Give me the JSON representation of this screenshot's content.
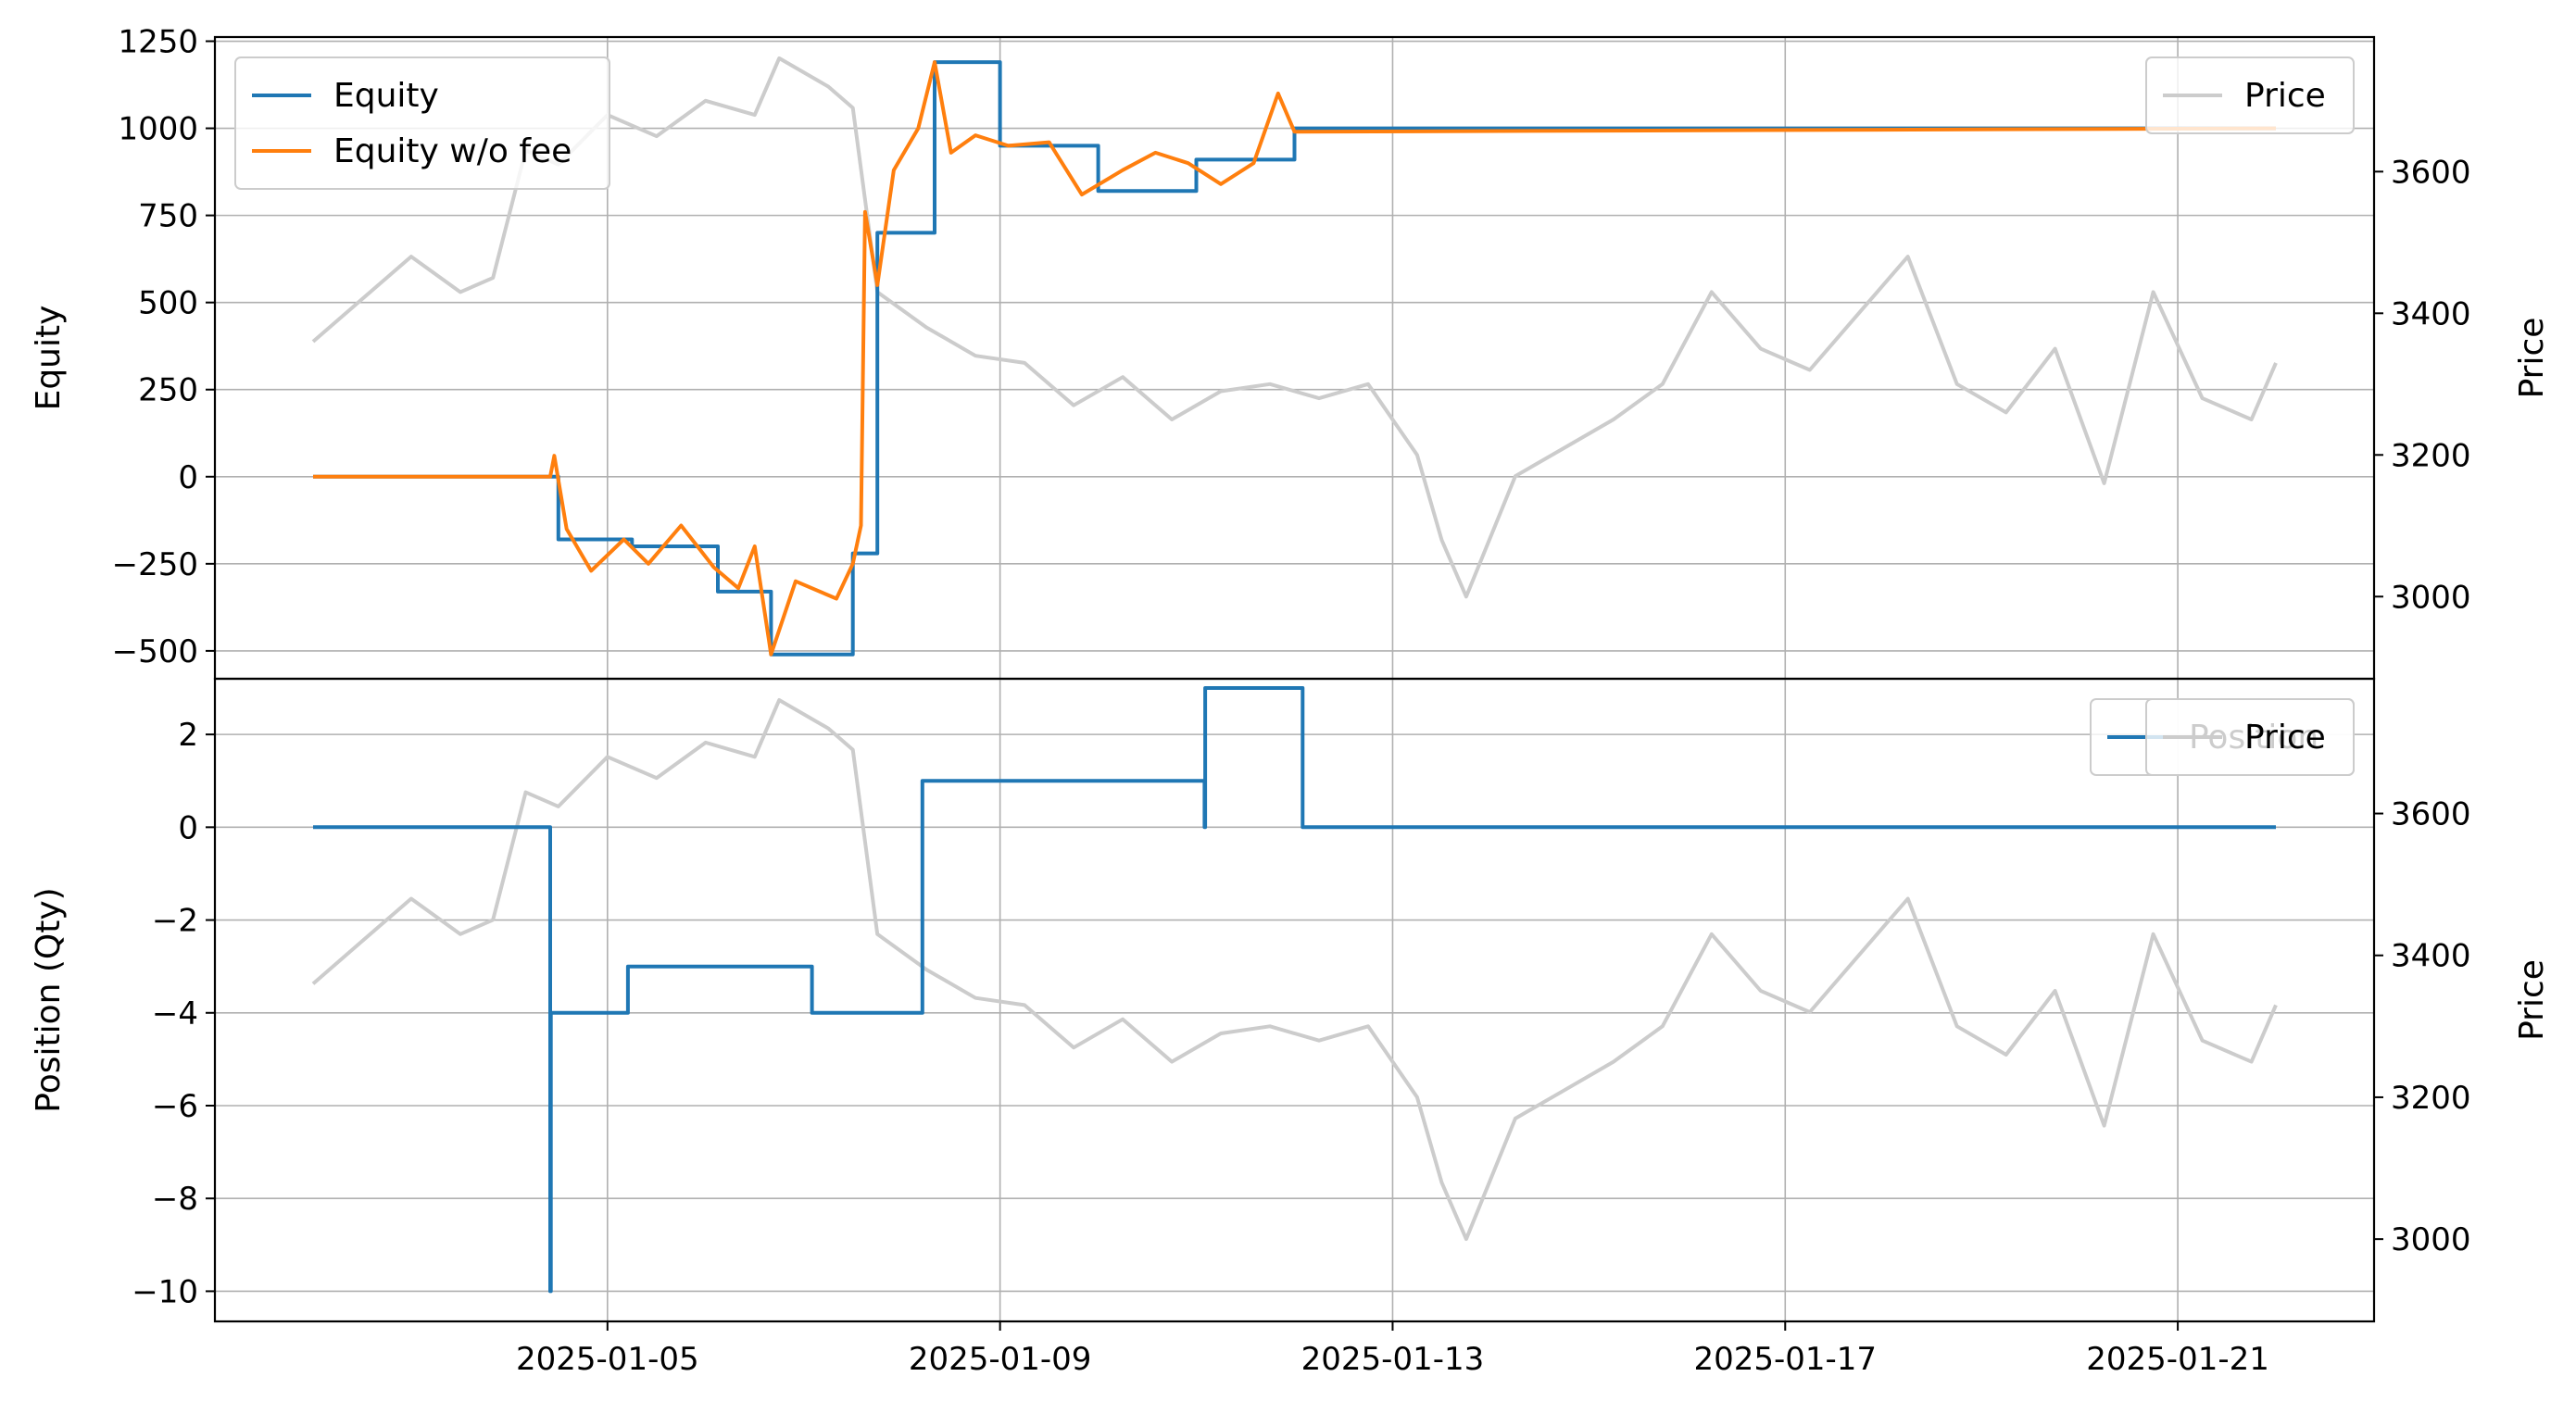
{
  "chart_data": [
    {
      "type": "line",
      "panel": "top",
      "ylabel": "Equity",
      "y2label": "Price",
      "ylim": [
        -580,
        1262
      ],
      "y2lim": [
        2884,
        3790
      ],
      "xlim": [
        "2025-01-01T00:00",
        "2025-01-23T00:00"
      ],
      "grid": true,
      "y_ticks": [
        -500,
        -250,
        0,
        250,
        500,
        750,
        1000,
        1250
      ],
      "y_tick_labels": [
        "−500",
        "−250",
        "0",
        "250",
        "500",
        "750",
        "1000",
        "1250"
      ],
      "y2_ticks": [
        3000,
        3200,
        3400,
        3600
      ],
      "y2_tick_labels": [
        "3000",
        "3200",
        "3400",
        "3600"
      ],
      "legend_left_position": "upper-left",
      "legend_right_position": "upper-right",
      "series": [
        {
          "name": "Equity",
          "color": "#1f77b4",
          "style": "step",
          "axis": "left",
          "points": [
            [
              "2025-01-02T00:00",
              0
            ],
            [
              "2025-01-04T10:00",
              0
            ],
            [
              "2025-01-04T12:00",
              -180
            ],
            [
              "2025-01-05T06:00",
              -200
            ],
            [
              "2025-01-06T03:00",
              -330
            ],
            [
              "2025-01-06T16:00",
              -510
            ],
            [
              "2025-01-07T12:00",
              -220
            ],
            [
              "2025-01-07T18:00",
              700
            ],
            [
              "2025-01-08T08:00",
              1190
            ],
            [
              "2025-01-09T00:00",
              950
            ],
            [
              "2025-01-10T00:00",
              820
            ],
            [
              "2025-01-11T00:00",
              910
            ],
            [
              "2025-01-12T00:00",
              1000
            ],
            [
              "2025-01-22T00:00",
              1000
            ]
          ]
        },
        {
          "name": "Equity w/o fee",
          "color": "#ff7f0e",
          "style": "line",
          "axis": "left",
          "points": [
            [
              "2025-01-02T00:00",
              0
            ],
            [
              "2025-01-04T10:00",
              0
            ],
            [
              "2025-01-04T11:00",
              60
            ],
            [
              "2025-01-04T14:00",
              -150
            ],
            [
              "2025-01-04T20:00",
              -270
            ],
            [
              "2025-01-05T04:00",
              -180
            ],
            [
              "2025-01-05T10:00",
              -250
            ],
            [
              "2025-01-05T18:00",
              -140
            ],
            [
              "2025-01-06T02:00",
              -260
            ],
            [
              "2025-01-06T08:00",
              -320
            ],
            [
              "2025-01-06T12:00",
              -200
            ],
            [
              "2025-01-06T16:00",
              -510
            ],
            [
              "2025-01-06T22:00",
              -300
            ],
            [
              "2025-01-07T08:00",
              -350
            ],
            [
              "2025-01-07T12:00",
              -250
            ],
            [
              "2025-01-07T14:00",
              -140
            ],
            [
              "2025-01-07T15:00",
              760
            ],
            [
              "2025-01-07T18:00",
              550
            ],
            [
              "2025-01-07T22:00",
              880
            ],
            [
              "2025-01-08T04:00",
              1000
            ],
            [
              "2025-01-08T08:00",
              1190
            ],
            [
              "2025-01-08T12:00",
              930
            ],
            [
              "2025-01-08T18:00",
              980
            ],
            [
              "2025-01-09T02:00",
              950
            ],
            [
              "2025-01-09T12:00",
              960
            ],
            [
              "2025-01-09T20:00",
              810
            ],
            [
              "2025-01-10T06:00",
              880
            ],
            [
              "2025-01-10T14:00",
              930
            ],
            [
              "2025-01-10T22:00",
              900
            ],
            [
              "2025-01-11T06:00",
              840
            ],
            [
              "2025-01-11T14:00",
              900
            ],
            [
              "2025-01-11T20:00",
              1100
            ],
            [
              "2025-01-12T00:00",
              990
            ],
            [
              "2025-01-22T00:00",
              1000
            ]
          ]
        },
        {
          "name": "Price",
          "color": "#cccccc",
          "style": "line",
          "axis": "right",
          "points": [
            [
              "2025-01-02T00:00",
              3360
            ],
            [
              "2025-01-02T12:00",
              3420
            ],
            [
              "2025-01-03T00:00",
              3480
            ],
            [
              "2025-01-03T12:00",
              3430
            ],
            [
              "2025-01-03T20:00",
              3450
            ],
            [
              "2025-01-04T04:00",
              3630
            ],
            [
              "2025-01-04T12:00",
              3610
            ],
            [
              "2025-01-05T00:00",
              3680
            ],
            [
              "2025-01-05T12:00",
              3650
            ],
            [
              "2025-01-06T00:00",
              3700
            ],
            [
              "2025-01-06T12:00",
              3680
            ],
            [
              "2025-01-06T18:00",
              3760
            ],
            [
              "2025-01-07T06:00",
              3720
            ],
            [
              "2025-01-07T12:00",
              3690
            ],
            [
              "2025-01-07T18:00",
              3430
            ],
            [
              "2025-01-08T06:00",
              3380
            ],
            [
              "2025-01-08T18:00",
              3340
            ],
            [
              "2025-01-09T06:00",
              3330
            ],
            [
              "2025-01-09T18:00",
              3270
            ],
            [
              "2025-01-10T06:00",
              3310
            ],
            [
              "2025-01-10T18:00",
              3250
            ],
            [
              "2025-01-11T06:00",
              3290
            ],
            [
              "2025-01-11T18:00",
              3300
            ],
            [
              "2025-01-12T06:00",
              3280
            ],
            [
              "2025-01-12T18:00",
              3300
            ],
            [
              "2025-01-13T06:00",
              3200
            ],
            [
              "2025-01-13T12:00",
              3080
            ],
            [
              "2025-01-13T18:00",
              3000
            ],
            [
              "2025-01-14T06:00",
              3170
            ],
            [
              "2025-01-14T18:00",
              3210
            ],
            [
              "2025-01-15T06:00",
              3250
            ],
            [
              "2025-01-15T18:00",
              3300
            ],
            [
              "2025-01-16T06:00",
              3430
            ],
            [
              "2025-01-16T18:00",
              3350
            ],
            [
              "2025-01-17T06:00",
              3320
            ],
            [
              "2025-01-17T18:00",
              3400
            ],
            [
              "2025-01-18T06:00",
              3480
            ],
            [
              "2025-01-18T18:00",
              3300
            ],
            [
              "2025-01-19T06:00",
              3260
            ],
            [
              "2025-01-19T18:00",
              3350
            ],
            [
              "2025-01-20T06:00",
              3160
            ],
            [
              "2025-01-20T18:00",
              3430
            ],
            [
              "2025-01-21T06:00",
              3280
            ],
            [
              "2025-01-21T18:00",
              3250
            ],
            [
              "2025-01-22T00:00",
              3330
            ]
          ]
        }
      ]
    },
    {
      "type": "line",
      "panel": "bottom",
      "ylabel": "Position (Qty)",
      "y2label": "Price",
      "ylim": [
        -10.65,
        3.2
      ],
      "y2lim": [
        2884,
        3790
      ],
      "xlim": [
        "2025-01-01T00:00",
        "2025-01-23T00:00"
      ],
      "grid": true,
      "y_ticks": [
        -10,
        -8,
        -6,
        -4,
        -2,
        0,
        2
      ],
      "y_tick_labels": [
        "−10",
        "−8",
        "−6",
        "−4",
        "−2",
        "0",
        "2"
      ],
      "y2_ticks": [
        3000,
        3200,
        3400,
        3600
      ],
      "y2_tick_labels": [
        "3000",
        "3200",
        "3400",
        "3600"
      ],
      "x_ticks": [
        "2025-01-05",
        "2025-01-09",
        "2025-01-13",
        "2025-01-17",
        "2025-01-21"
      ],
      "legend_left_position": "upper-right",
      "legend_right_position": "upper-right",
      "series": [
        {
          "name": "Position",
          "color": "#1f77b4",
          "style": "step",
          "axis": "left",
          "points": [
            [
              "2025-01-02T00:00",
              0
            ],
            [
              "2025-01-04T10:00",
              0
            ],
            [
              "2025-01-04T10:00",
              -10
            ],
            [
              "2025-01-04T10:10",
              -10
            ],
            [
              "2025-01-04T10:10",
              -4
            ],
            [
              "2025-01-05T05:00",
              -4
            ],
            [
              "2025-01-05T05:00",
              -3
            ],
            [
              "2025-01-07T02:00",
              -3
            ],
            [
              "2025-01-07T02:00",
              -4
            ],
            [
              "2025-01-08T05:00",
              -4
            ],
            [
              "2025-01-08T05:00",
              1
            ],
            [
              "2025-01-11T02:00",
              1
            ],
            [
              "2025-01-11T02:00",
              0
            ],
            [
              "2025-01-11T02:10",
              0
            ],
            [
              "2025-01-11T02:10",
              3
            ],
            [
              "2025-01-12T02:00",
              3
            ],
            [
              "2025-01-12T02:00",
              0
            ],
            [
              "2025-01-22T00:00",
              0
            ]
          ]
        },
        {
          "name": "Price",
          "color": "#cccccc",
          "style": "line",
          "axis": "right",
          "points": [
            [
              "2025-01-02T00:00",
              3360
            ],
            [
              "2025-01-02T12:00",
              3420
            ],
            [
              "2025-01-03T00:00",
              3480
            ],
            [
              "2025-01-03T12:00",
              3430
            ],
            [
              "2025-01-03T20:00",
              3450
            ],
            [
              "2025-01-04T04:00",
              3630
            ],
            [
              "2025-01-04T12:00",
              3610
            ],
            [
              "2025-01-05T00:00",
              3680
            ],
            [
              "2025-01-05T12:00",
              3650
            ],
            [
              "2025-01-06T00:00",
              3700
            ],
            [
              "2025-01-06T12:00",
              3680
            ],
            [
              "2025-01-06T18:00",
              3760
            ],
            [
              "2025-01-07T06:00",
              3720
            ],
            [
              "2025-01-07T12:00",
              3690
            ],
            [
              "2025-01-07T18:00",
              3430
            ],
            [
              "2025-01-08T06:00",
              3380
            ],
            [
              "2025-01-08T18:00",
              3340
            ],
            [
              "2025-01-09T06:00",
              3330
            ],
            [
              "2025-01-09T18:00",
              3270
            ],
            [
              "2025-01-10T06:00",
              3310
            ],
            [
              "2025-01-10T18:00",
              3250
            ],
            [
              "2025-01-11T06:00",
              3290
            ],
            [
              "2025-01-11T18:00",
              3300
            ],
            [
              "2025-01-12T06:00",
              3280
            ],
            [
              "2025-01-12T18:00",
              3300
            ],
            [
              "2025-01-13T06:00",
              3200
            ],
            [
              "2025-01-13T12:00",
              3080
            ],
            [
              "2025-01-13T18:00",
              3000
            ],
            [
              "2025-01-14T06:00",
              3170
            ],
            [
              "2025-01-14T18:00",
              3210
            ],
            [
              "2025-01-15T06:00",
              3250
            ],
            [
              "2025-01-15T18:00",
              3300
            ],
            [
              "2025-01-16T06:00",
              3430
            ],
            [
              "2025-01-16T18:00",
              3350
            ],
            [
              "2025-01-17T06:00",
              3320
            ],
            [
              "2025-01-17T18:00",
              3400
            ],
            [
              "2025-01-18T06:00",
              3480
            ],
            [
              "2025-01-18T18:00",
              3300
            ],
            [
              "2025-01-19T06:00",
              3260
            ],
            [
              "2025-01-19T18:00",
              3350
            ],
            [
              "2025-01-20T06:00",
              3160
            ],
            [
              "2025-01-20T18:00",
              3430
            ],
            [
              "2025-01-21T06:00",
              3280
            ],
            [
              "2025-01-21T18:00",
              3250
            ],
            [
              "2025-01-22T00:00",
              3330
            ]
          ]
        }
      ]
    }
  ]
}
